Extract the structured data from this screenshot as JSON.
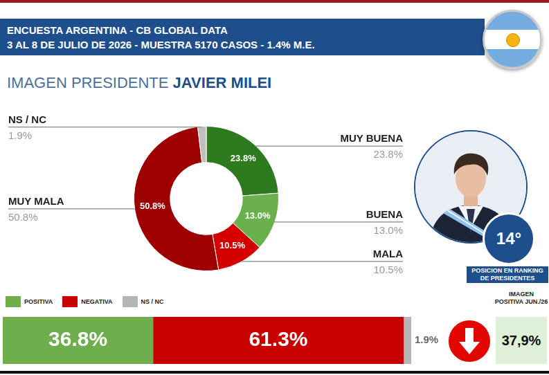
{
  "header": {
    "title": "ENCUESTA ARGENTINA - CB GLOBAL DATA",
    "subtitle": "3 AL 8 DE JULIO DE 2026 - MUESTRA 5170 CASOS - 1.4% M.E."
  },
  "heading": {
    "text": "IMAGEN PRESIDENTE",
    "name": "JAVIER MILEI"
  },
  "ranking": {
    "label": "14°",
    "caption": "POSICION EN RANKING DE PRESIDENTES"
  },
  "previous": {
    "caption": "IMAGEN POSITIVA JUN./26",
    "label": "37,9%"
  },
  "chart_data": [
    {
      "type": "doughnut",
      "categories": [
        "MUY BUENA",
        "BUENA",
        "MALA",
        "MUY MALA",
        "NS / NC"
      ],
      "values": [
        23.8,
        13.0,
        10.5,
        50.8,
        1.9
      ],
      "value_labels": [
        "23.8%",
        "13.0%",
        "10.5%",
        "50.8%",
        "1.9%"
      ],
      "colors": [
        "#2d7a1f",
        "#6ab04c",
        "#d40000",
        "#9e0000",
        "#c0c0c0"
      ],
      "data_labels": true
    },
    {
      "type": "bar",
      "orientation": "horizontal",
      "stacked": true,
      "categories": [
        null
      ],
      "series": [
        {
          "name": "POSITIVA",
          "color": "#6fae4d",
          "values": [
            36.8
          ],
          "value_labels": [
            "36.8%"
          ]
        },
        {
          "name": "NEGATIVA",
          "color": "#c80000",
          "values": [
            61.3
          ],
          "value_labels": [
            "61.3%"
          ]
        },
        {
          "name": "NS / NC",
          "color": "#b5b5b5",
          "values": [
            1.9
          ],
          "value_labels": [
            "1.9%"
          ]
        }
      ],
      "xlim": [
        0,
        100
      ],
      "legend": "top-left",
      "data_labels": true,
      "tick_labels": false
    }
  ]
}
